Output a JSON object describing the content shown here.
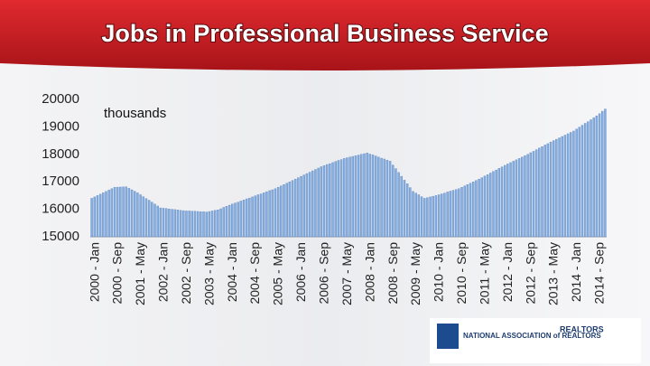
{
  "chart_data": {
    "type": "bar",
    "title": "Jobs in Professional Business Service",
    "y_label": "thousands",
    "categories": [
      "2000 - Jan",
      null,
      null,
      null,
      null,
      null,
      null,
      null,
      "2000 - Sep",
      null,
      null,
      null,
      null,
      null,
      null,
      null,
      "2001 - May",
      null,
      null,
      null,
      null,
      null,
      null,
      null,
      "2002 - Jan",
      null,
      null,
      null,
      null,
      null,
      null,
      null,
      "2002 - Sep",
      null,
      null,
      null,
      null,
      null,
      null,
      null,
      "2003 - May",
      null,
      null,
      null,
      null,
      null,
      null,
      null,
      "2004 - Jan",
      null,
      null,
      null,
      null,
      null,
      null,
      null,
      "2004 - Sep",
      null,
      null,
      null,
      null,
      null,
      null,
      null,
      "2005 - May",
      null,
      null,
      null,
      null,
      null,
      null,
      null,
      "2006 - Jan",
      null,
      null,
      null,
      null,
      null,
      null,
      null,
      "2006 - Sep",
      null,
      null,
      null,
      null,
      null,
      null,
      null,
      "2007 - May",
      null,
      null,
      null,
      null,
      null,
      null,
      null,
      "2008 - Jan",
      null,
      null,
      null,
      null,
      null,
      null,
      null,
      "2008 - Sep",
      null,
      null,
      null,
      null,
      null,
      null,
      null,
      "2009 - May",
      null,
      null,
      null,
      null,
      null,
      null,
      null,
      "2010 - Jan",
      null,
      null,
      null,
      null,
      null,
      null,
      null,
      "2010 - Sep",
      null,
      null,
      null,
      null,
      null,
      null,
      null,
      "2011 - May",
      null,
      null,
      null,
      null,
      null,
      null,
      null,
      "2012 - Jan",
      null,
      null,
      null,
      null,
      null,
      null,
      null,
      "2012 - Sep",
      null,
      null,
      null,
      null,
      null,
      null,
      null,
      "2013 - May",
      null,
      null,
      null,
      null,
      null,
      null,
      null,
      "2014 - Jan",
      null,
      null,
      null,
      null,
      null,
      null,
      null,
      "2014 - Sep",
      null,
      null,
      null
    ],
    "values": [
      16400,
      16450,
      16500,
      16550,
      16600,
      16650,
      16700,
      16750,
      16800,
      16805,
      16810,
      16815,
      16820,
      16765,
      16710,
      16655,
      16600,
      16530,
      16460,
      16390,
      16330,
      16260,
      16190,
      16120,
      16050,
      16040,
      16030,
      16010,
      16000,
      15990,
      15980,
      15960,
      15950,
      15940,
      15940,
      15930,
      15930,
      15920,
      15910,
      15910,
      15900,
      15920,
      15940,
      15960,
      15980,
      16020,
      16070,
      16110,
      16150,
      16190,
      16230,
      16260,
      16300,
      16340,
      16380,
      16410,
      16450,
      16490,
      16530,
      16560,
      16600,
      16640,
      16680,
      16710,
      16750,
      16800,
      16850,
      16900,
      16950,
      17000,
      17050,
      17100,
      17150,
      17200,
      17250,
      17300,
      17350,
      17400,
      17450,
      17500,
      17550,
      17590,
      17630,
      17660,
      17700,
      17740,
      17780,
      17810,
      17850,
      17875,
      17900,
      17925,
      17950,
      17975,
      18000,
      18025,
      18050,
      18010,
      17980,
      17940,
      17900,
      17860,
      17830,
      17790,
      17750,
      17610,
      17480,
      17340,
      17200,
      17060,
      16930,
      16790,
      16650,
      16590,
      16530,
      16460,
      16400,
      16425,
      16450,
      16475,
      16500,
      16530,
      16560,
      16590,
      16630,
      16660,
      16690,
      16720,
      16750,
      16800,
      16850,
      16900,
      16950,
      17000,
      17050,
      17100,
      17150,
      17210,
      17260,
      17320,
      17380,
      17430,
      17490,
      17540,
      17600,
      17650,
      17700,
      17750,
      17800,
      17850,
      17900,
      17950,
      18000,
      18060,
      18110,
      18170,
      18230,
      18280,
      18340,
      18390,
      18450,
      18500,
      18550,
      18600,
      18650,
      18700,
      18750,
      18800,
      18850,
      18920,
      18990,
      19060,
      19130,
      19190,
      19260,
      19330,
      19400,
      19480,
      19570,
      19650
    ],
    "color": "#86aee0",
    "ylim": [
      15000,
      20000
    ],
    "yticks": [
      15000,
      16000,
      17000,
      18000,
      19000,
      20000
    ],
    "grid": false
  },
  "footer_logos": [
    "NATIONAL ASSOCIATION of REALTORS",
    "REALTORS"
  ]
}
